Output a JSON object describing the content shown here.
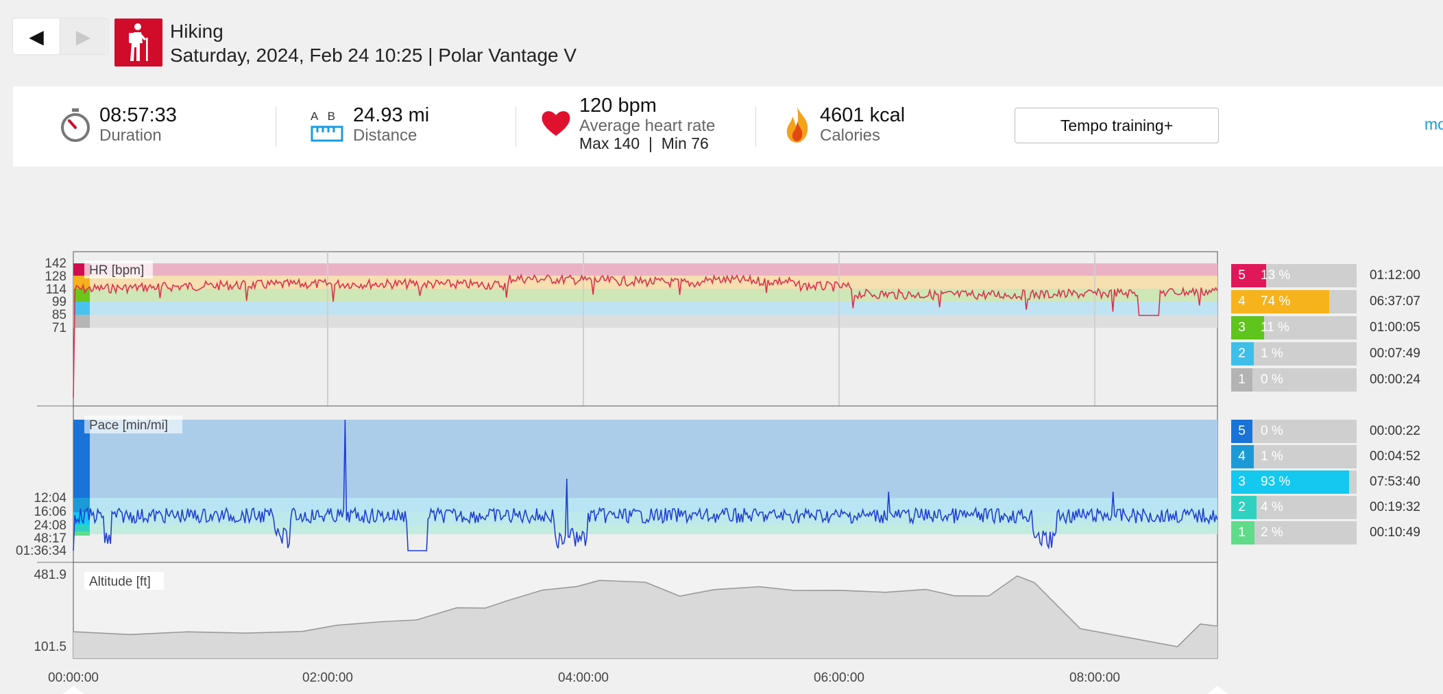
{
  "nav": {
    "prev_glyph": "◀",
    "next_glyph": "▶",
    "sport_icon": "hiking-icon"
  },
  "workout": {
    "sport": "Hiking",
    "subtitle": "Saturday, 2024, Feb 24 10:25 | Polar Vantage V"
  },
  "summary": {
    "duration_value": "08:57:33",
    "duration_label": "Duration",
    "distance_ab": "A   B",
    "distance_value": "24.93 mi",
    "distance_label": "Distance",
    "hr_value": "120 bpm",
    "hr_label": "Average heart rate",
    "hr_maxmin": "Max 140  |  Min 76",
    "calories_value": "4601 kcal",
    "calories_label": "Calories",
    "tempo_button": "Tempo training+",
    "more_link": "more"
  },
  "colors": {
    "accent": "#d10b2a",
    "link": "#1a9be0",
    "hr_line": "#d8324b",
    "pace_line": "#1f3fd1",
    "altitude_fill": "#d9d9d9"
  },
  "hr_chart": {
    "label": "HR [bpm]",
    "ticks": [
      "142",
      "128",
      "114",
      "99",
      "85",
      "71"
    ],
    "tick_values": [
      142,
      128,
      114,
      99,
      85,
      71
    ],
    "zone_colors": [
      "#d10b4f",
      "#f6b01b",
      "#6cc51c",
      "#4ac3ec",
      "#b5b5b5"
    ],
    "zone_band_colors": [
      "#ebb2c6",
      "#f6dfb0",
      "#cfe6b6",
      "#bfe3f2",
      "#dedede"
    ]
  },
  "pace_chart": {
    "label": "Pace [min/mi]",
    "ticks": [
      "12:04",
      "16:06",
      "24:08",
      "48:17",
      "01:36:34"
    ]
  },
  "altitude_chart": {
    "label": "Altitude [ft]",
    "ticks": [
      "481.9",
      "101.5"
    ]
  },
  "time_axis": {
    "labels": [
      "00:00:00",
      "02:00:00",
      "04:00:00",
      "06:00:00",
      "08:00:00"
    ]
  },
  "hr_zones": [
    {
      "num": "5",
      "pct": "13 %",
      "time": "01:12:00",
      "fraction": 0.13,
      "color": "#e0185a"
    },
    {
      "num": "4",
      "pct": "74 %",
      "time": "06:37:07",
      "fraction": 0.74,
      "color": "#f6b31c"
    },
    {
      "num": "3",
      "pct": "11 %",
      "time": "01:00:05",
      "fraction": 0.11,
      "color": "#5fc41c"
    },
    {
      "num": "2",
      "pct": "1 %",
      "time": "00:07:49",
      "fraction": 0.01,
      "color": "#3ebfe9"
    },
    {
      "num": "1",
      "pct": "0 %",
      "time": "00:00:24",
      "fraction": 0.0,
      "color": "#b3b3b3"
    }
  ],
  "pace_zones": [
    {
      "num": "5",
      "pct": "0 %",
      "time": "00:00:22",
      "fraction": 0.0,
      "color": "#1a73d8"
    },
    {
      "num": "4",
      "pct": "1 %",
      "time": "00:04:52",
      "fraction": 0.01,
      "color": "#1c9ad8"
    },
    {
      "num": "3",
      "pct": "93 %",
      "time": "07:53:40",
      "fraction": 0.93,
      "color": "#14c8f0"
    },
    {
      "num": "2",
      "pct": "4 %",
      "time": "00:19:32",
      "fraction": 0.04,
      "color": "#2fd2c0"
    },
    {
      "num": "1",
      "pct": "2 %",
      "time": "00:10:49",
      "fraction": 0.02,
      "color": "#5fdc8a"
    }
  ]
}
